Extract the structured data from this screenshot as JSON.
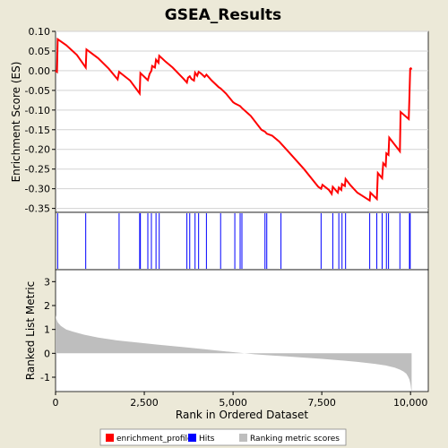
{
  "chart_data": {
    "type": "line",
    "title": "GSEA_Results",
    "xlabel": "Rank in Ordered Dataset",
    "xlim": [
      0,
      10500
    ],
    "xticks": [
      0,
      2500,
      5000,
      7500,
      10000
    ],
    "xtick_labels": [
      "0",
      "2,500",
      "5,000",
      "7,500",
      "10,000"
    ],
    "panels": {
      "enrichment": {
        "ylabel": "Enrichment Score (ES)",
        "ylim": [
          -0.36,
          0.1
        ],
        "yticks": [
          0.1,
          0.05,
          0.0,
          -0.05,
          -0.1,
          -0.15,
          -0.2,
          -0.25,
          -0.3,
          -0.35
        ],
        "ytick_labels": [
          "0.10",
          "0.05",
          "0.00",
          "-0.05",
          "-0.10",
          "-0.15",
          "-0.20",
          "-0.25",
          "-0.30",
          "-0.35"
        ],
        "grid": true
      },
      "ranked": {
        "ylabel": "Ranked List Metric",
        "ylim": [
          -1.6,
          3.5
        ],
        "yticks": [
          3,
          2,
          1,
          0,
          -1
        ],
        "ytick_labels": [
          "3",
          "2",
          "1",
          "0",
          "-1"
        ]
      }
    },
    "series": [
      {
        "name": "enrichment_profile",
        "color": "#FF0000",
        "x": [
          0,
          40,
          60,
          300,
          600,
          850,
          870,
          1200,
          1500,
          1750,
          1790,
          2100,
          2370,
          2390,
          2600,
          2650,
          2700,
          2720,
          2800,
          2830,
          2900,
          2920,
          3100,
          3300,
          3600,
          3700,
          3730,
          3780,
          3830,
          3900,
          3930,
          3990,
          4030,
          4100,
          4200,
          4250,
          4400,
          4600,
          4650,
          4800,
          5000,
          5050,
          5200,
          5250,
          5500,
          5800,
          5900,
          5950,
          6100,
          6300,
          6350,
          6600,
          7000,
          7400,
          7480,
          7520,
          7700,
          7780,
          7810,
          7950,
          7980,
          8050,
          8070,
          8150,
          8170,
          8300,
          8500,
          8850,
          8870,
          9050,
          9080,
          9200,
          9230,
          9300,
          9320,
          9380,
          9400,
          9700,
          9720,
          9950,
          9970,
          9990,
          10000,
          10010,
          10030
        ],
        "y": [
          0.0,
          -0.003,
          0.08,
          0.065,
          0.04,
          0.008,
          0.054,
          0.032,
          0.005,
          -0.022,
          -0.003,
          -0.025,
          -0.058,
          -0.006,
          -0.024,
          -0.008,
          0.0,
          0.012,
          0.008,
          0.028,
          0.02,
          0.038,
          0.023,
          0.008,
          -0.02,
          -0.03,
          -0.018,
          -0.014,
          -0.021,
          -0.025,
          -0.005,
          -0.013,
          -0.003,
          -0.007,
          -0.016,
          -0.01,
          -0.025,
          -0.042,
          -0.045,
          -0.058,
          -0.08,
          -0.083,
          -0.09,
          -0.095,
          -0.115,
          -0.15,
          -0.155,
          -0.16,
          -0.165,
          -0.18,
          -0.185,
          -0.21,
          -0.25,
          -0.295,
          -0.3,
          -0.29,
          -0.303,
          -0.313,
          -0.295,
          -0.31,
          -0.297,
          -0.303,
          -0.288,
          -0.293,
          -0.275,
          -0.29,
          -0.31,
          -0.33,
          -0.31,
          -0.326,
          -0.26,
          -0.273,
          -0.235,
          -0.242,
          -0.21,
          -0.214,
          -0.17,
          -0.205,
          -0.105,
          -0.123,
          -0.062,
          0.005,
          0.005,
          0.006,
          0.003
        ]
      },
      {
        "name": "Hits",
        "color": "#0000FF",
        "x": [
          60,
          850,
          1790,
          2370,
          2390,
          2600,
          2700,
          2830,
          2920,
          3700,
          3780,
          3930,
          4030,
          4250,
          4650,
          5050,
          5200,
          5250,
          5900,
          5950,
          6350,
          7480,
          7810,
          7980,
          8070,
          8170,
          8850,
          9050,
          9200,
          9320,
          9380,
          9700,
          9970,
          9990
        ]
      },
      {
        "name": "Ranking metric scores",
        "color": "#BEBEBE",
        "x": [
          0,
          20,
          60,
          150,
          300,
          500,
          800,
          1200,
          1700,
          2300,
          2900,
          3600,
          4200,
          4800,
          5200,
          5600,
          6000,
          6500,
          7000,
          7500,
          8000,
          8500,
          9000,
          9300,
          9550,
          9700,
          9800,
          9880,
          9930,
          9970,
          10000,
          10030
        ],
        "y": [
          1.6,
          1.45,
          1.3,
          1.15,
          1.0,
          0.9,
          0.78,
          0.66,
          0.55,
          0.45,
          0.36,
          0.26,
          0.17,
          0.08,
          0.02,
          -0.04,
          -0.08,
          -0.13,
          -0.18,
          -0.23,
          -0.29,
          -0.36,
          -0.44,
          -0.51,
          -0.6,
          -0.68,
          -0.76,
          -0.85,
          -0.97,
          -1.1,
          -1.3,
          -1.65
        ]
      }
    ],
    "legend": {
      "position": "bottom",
      "entries": [
        "enrichment_profile",
        "Hits",
        "Ranking metric scores"
      ]
    }
  }
}
